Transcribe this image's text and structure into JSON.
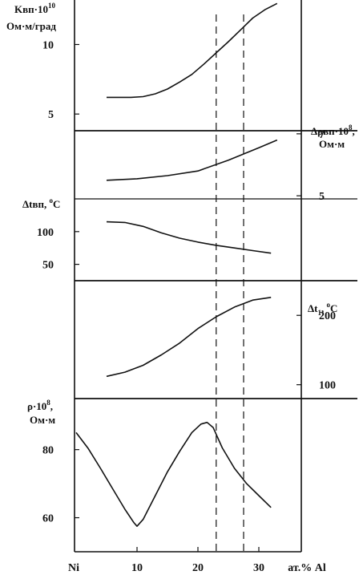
{
  "chart_data": {
    "type": "line",
    "x_axis": {
      "range": [
        0,
        35
      ],
      "ticks": [
        {
          "value": 0,
          "label": "Ni"
        },
        {
          "value": 10,
          "label": "10"
        },
        {
          "value": 20,
          "label": "20"
        },
        {
          "value": 30,
          "label": "30"
        }
      ],
      "unit_label": "ат.% Al"
    },
    "dashed_lines_x": [
      23,
      27.5
    ],
    "panels": [
      {
        "id": "K",
        "label": [
          "Kвп·10",
          "10",
          "Ом·м/град"
        ],
        "axis_side": "left",
        "ylim": [
          3.8,
          13.2
        ],
        "ticks": [
          {
            "value": 5,
            "label": "5"
          },
          {
            "value": 10,
            "label": "10"
          }
        ],
        "x": [
          5,
          7,
          9,
          11,
          13,
          15,
          17,
          19,
          21,
          23,
          25,
          27,
          29,
          31,
          33
        ],
        "y": [
          6.2,
          6.2,
          6.2,
          6.25,
          6.45,
          6.8,
          7.3,
          7.85,
          8.6,
          9.4,
          10.2,
          11.05,
          11.9,
          12.5,
          12.95
        ]
      },
      {
        "id": "drho",
        "label": [
          "Δρвп·10",
          "8",
          "Ом·м"
        ],
        "axis_side": "right",
        "ylim": [
          4.9,
          7.1
        ],
        "ticks": [
          {
            "value": 5,
            "label": "5"
          },
          {
            "value": 7,
            "label": "7"
          }
        ],
        "x": [
          5,
          10,
          15,
          20,
          25,
          30,
          33
        ],
        "y": [
          5.5,
          5.55,
          5.65,
          5.8,
          6.15,
          6.55,
          6.8
        ]
      },
      {
        "id": "dtvp",
        "label": [
          "Δtвп, ",
          "o",
          "C"
        ],
        "axis_side": "left",
        "ylim": [
          25,
          150
        ],
        "ticks": [
          {
            "value": 50,
            "label": "50"
          },
          {
            "value": 100,
            "label": "100"
          }
        ],
        "x": [
          5,
          8,
          11,
          14,
          17,
          20,
          23,
          26,
          29,
          32
        ],
        "y": [
          115,
          114,
          108,
          98,
          90,
          84,
          79,
          75,
          71,
          67
        ]
      },
      {
        "id": "dt1",
        "label": [
          "Δt",
          "1",
          ", ",
          "o",
          "C"
        ],
        "axis_side": "right",
        "ylim": [
          80,
          250
        ],
        "ticks": [
          {
            "value": 100,
            "label": "100"
          },
          {
            "value": 200,
            "label": "200"
          }
        ],
        "x": [
          5,
          8,
          11,
          14,
          17,
          20,
          23,
          26,
          29,
          32
        ],
        "y": [
          112,
          118,
          128,
          143,
          160,
          181,
          198,
          212,
          222,
          226
        ]
      },
      {
        "id": "rho",
        "label": [
          "ρ·10",
          "8",
          ",",
          "Ом·м"
        ],
        "axis_side": "left",
        "ylim": [
          50,
          95
        ],
        "ticks": [
          {
            "value": 60,
            "label": "60"
          },
          {
            "value": 80,
            "label": "80"
          }
        ],
        "x": [
          0,
          2,
          4,
          6,
          8,
          9.5,
          10,
          11,
          13,
          15,
          17,
          19,
          20.5,
          21.5,
          22.5,
          23,
          24,
          26,
          28,
          30,
          32
        ],
        "y": [
          85,
          80.3,
          74.5,
          68.5,
          62.5,
          58.5,
          57.5,
          59.5,
          66.5,
          73.5,
          79.5,
          85,
          87.5,
          88,
          86.5,
          84.5,
          80.5,
          74.5,
          70,
          66.5,
          63
        ]
      }
    ]
  }
}
